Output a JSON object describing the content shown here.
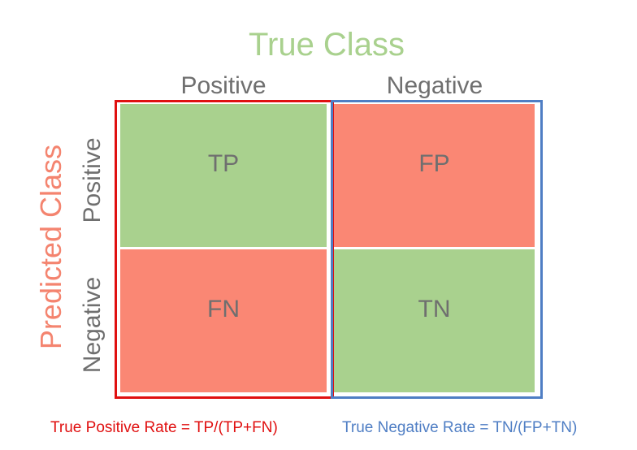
{
  "header": {
    "title": "True Class",
    "col_positive": "Positive",
    "col_negative": "Negative"
  },
  "side": {
    "title": "Predicted Class",
    "row_positive": "Positive",
    "row_negative": "Negative"
  },
  "cells": {
    "tp": "TP",
    "fp": "FP",
    "fn": "FN",
    "tn": "TN"
  },
  "formulas": {
    "tpr": "True Positive Rate = TP/(TP+FN)",
    "tnr": "True Negative Rate = TN/(FP+TN)"
  },
  "colors": {
    "correct": "#a9d18e",
    "incorrect": "#fa8774",
    "positive_frame": "#e01010",
    "negative_frame": "#4f7ec4",
    "predicted_title": "#f4846f",
    "label_gray": "#6f6f6f"
  }
}
